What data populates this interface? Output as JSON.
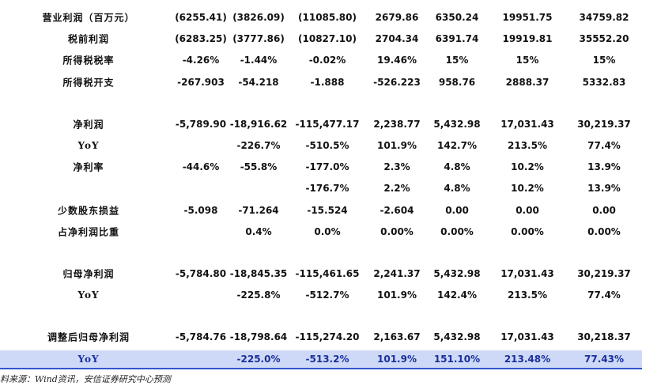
{
  "table": {
    "groups": [
      [
        {
          "label": "营业利润（百万元）",
          "values": [
            "(6255.41)",
            "(3826.09)",
            "(11085.80)",
            "2679.86",
            "6350.24",
            "19951.75",
            "34759.82"
          ]
        },
        {
          "label": "税前利润",
          "values": [
            "(6283.25)",
            "(3777.86)",
            "(10827.10)",
            "2704.34",
            "6391.74",
            "19919.81",
            "35552.20"
          ]
        },
        {
          "label": "所得税税率",
          "values": [
            "-4.26%",
            "-1.44%",
            "-0.02%",
            "19.46%",
            "15%",
            "15%",
            "15%"
          ]
        },
        {
          "label": "所得税开支",
          "values": [
            "-267.903",
            "-54.218",
            "-1.888",
            "-526.223",
            "958.76",
            "2888.37",
            "5332.83"
          ]
        }
      ],
      [
        {
          "label": "净利润",
          "values": [
            "-5,789.90",
            "-18,916.62",
            "-115,477.17",
            "2,238.77",
            "5,432.98",
            "17,031.43",
            "30,219.37"
          ]
        },
        {
          "label": "YoY",
          "values": [
            null,
            "-226.7%",
            "-510.5%",
            "101.9%",
            "142.7%",
            "213.5%",
            "77.4%"
          ]
        },
        {
          "label": "净利率",
          "values": [
            "-44.6%",
            "-55.8%",
            "-177.0%",
            "2.3%",
            "4.8%",
            "10.2%",
            "13.9%"
          ]
        },
        {
          "label": null,
          "values": [
            null,
            null,
            "-176.7%",
            "2.2%",
            "4.8%",
            "10.2%",
            "13.9%"
          ]
        },
        {
          "label": "少数股东损益",
          "values": [
            "-5.098",
            "-71.264",
            "-15.524",
            "-2.604",
            "0.00",
            "0.00",
            "0.00"
          ]
        },
        {
          "label": "占净利润比重",
          "values": [
            null,
            "0.4%",
            "0.0%",
            "0.00%",
            "0.00%",
            "0.00%",
            "0.00%"
          ]
        }
      ],
      [
        {
          "label": "归母净利润",
          "values": [
            "-5,784.80",
            "-18,845.35",
            "-115,461.65",
            "2,241.37",
            "5,432.98",
            "17,031.43",
            "30,219.37"
          ]
        },
        {
          "label": "YoY",
          "values": [
            null,
            "-225.8%",
            "-512.7%",
            "101.9%",
            "142.4%",
            "213.5%",
            "77.4%"
          ]
        }
      ],
      [
        {
          "label": "调整后归母净利润",
          "values": [
            "-5,784.76",
            "-18,798.64",
            "-115,274.20",
            "2,163.67",
            "5,432.98",
            "17,031.43",
            "30,218.37"
          ]
        },
        {
          "label": "YoY",
          "values": [
            null,
            "-225.0%",
            "-513.2%",
            "101.9%",
            "151.10%",
            "213.48%",
            "77.43%"
          ]
        }
      ]
    ]
  },
  "footer": "料来源：Wind资讯，安信证券研究中心预测"
}
